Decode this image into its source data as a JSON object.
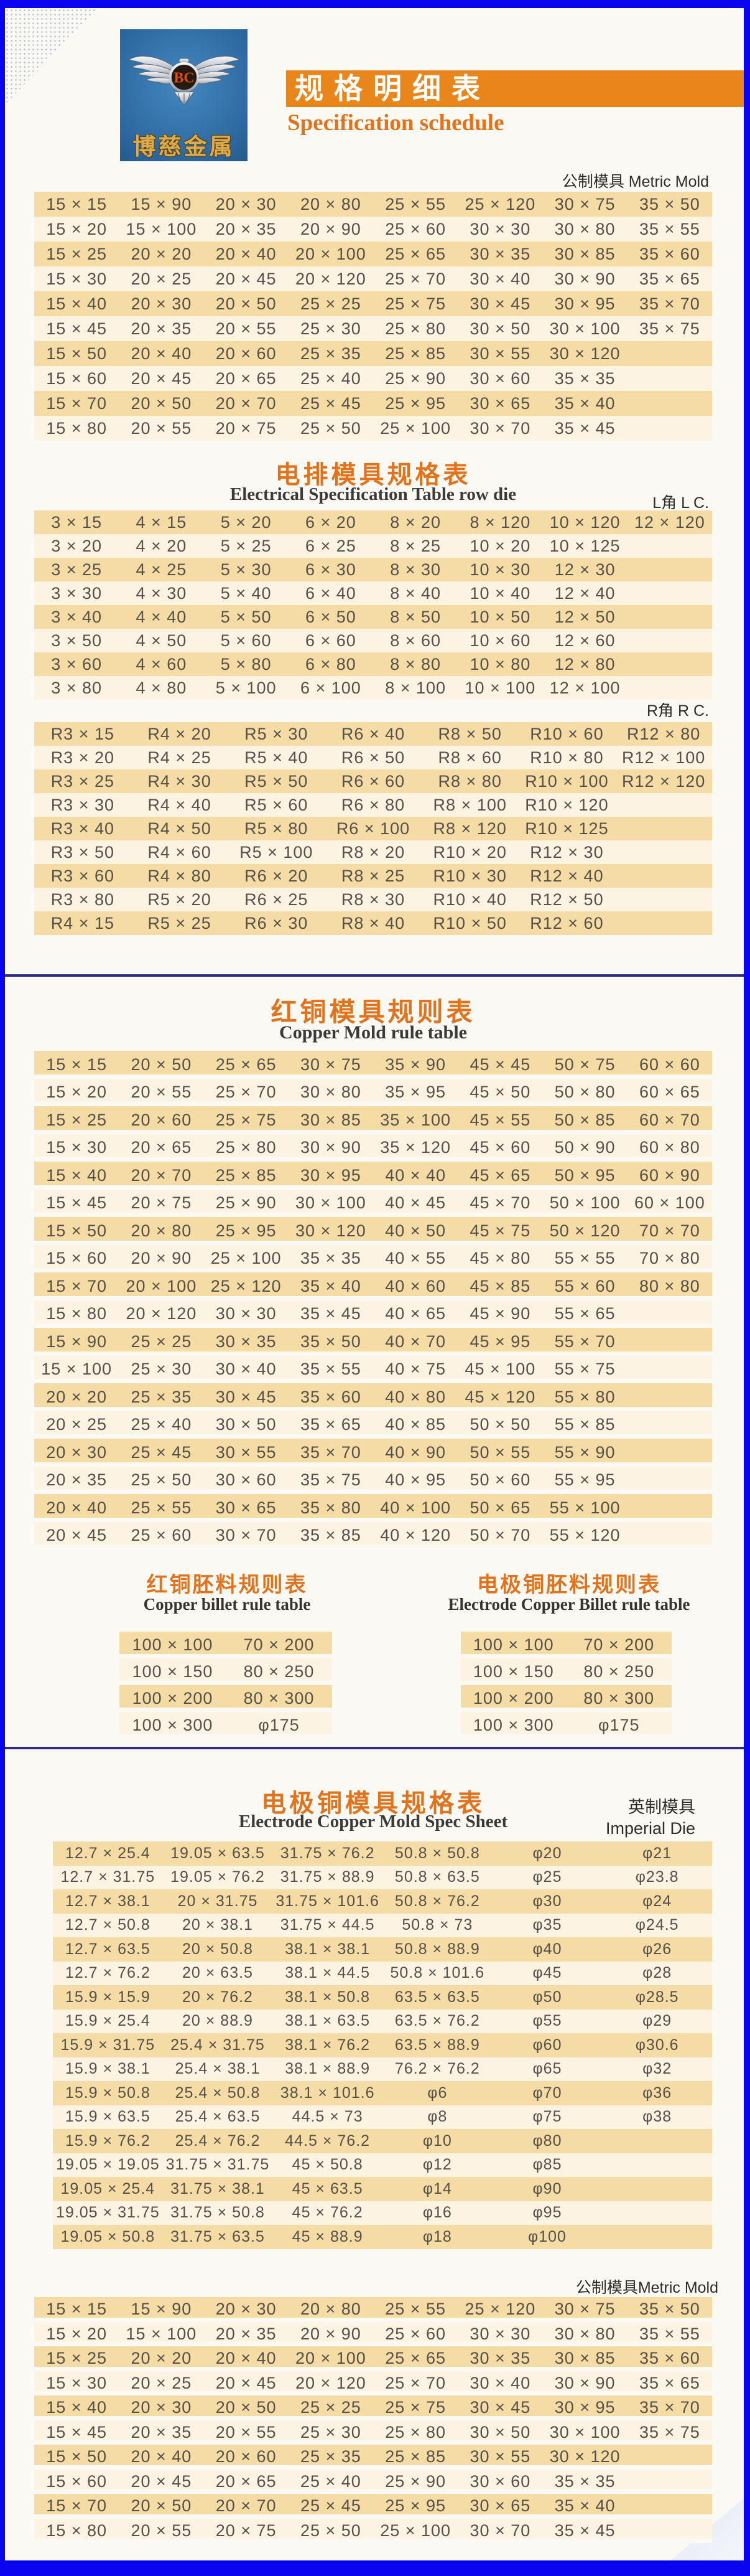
{
  "header": {
    "logo": {
      "emblem_text": "BC",
      "company": "博慈金属"
    },
    "title_cn": "规格明细表",
    "title_en": "Specification schedule"
  },
  "colors": {
    "border_blue": "#0b04ef",
    "divider_navy": "#2c2c86",
    "accent_orange": "#e8861c",
    "title_orange": "#e2731c",
    "row_dark": "#f5dba4",
    "row_light": "#fcf3e2",
    "logo_blue": "#2c689f"
  },
  "sections": {
    "metric_top": {
      "corner_label": "公制模具 Metric Mold",
      "columns": 8,
      "rows": [
        [
          "15 × 15",
          "15 × 90",
          "20 × 30",
          "20 × 80",
          "25 × 55",
          "25 × 120",
          "30 × 75",
          "35 × 50"
        ],
        [
          "15 × 20",
          "15 × 100",
          "20 × 35",
          "20 × 90",
          "25 × 60",
          "30 × 30",
          "30 × 80",
          "35 × 55"
        ],
        [
          "15 × 25",
          "20 × 20",
          "20 × 40",
          "20 × 100",
          "25 × 65",
          "30 × 35",
          "30 × 85",
          "35 × 60"
        ],
        [
          "15 × 30",
          "20 × 25",
          "20 × 45",
          "20 × 120",
          "25 × 70",
          "30 × 40",
          "30 × 90",
          "35 × 65"
        ],
        [
          "15 × 40",
          "20 × 30",
          "20 × 50",
          "25 × 25",
          "25 × 75",
          "30 × 45",
          "30 × 95",
          "35 × 70"
        ],
        [
          "15 × 45",
          "20 × 35",
          "20 × 55",
          "25 × 30",
          "25 × 80",
          "30 × 50",
          "30 × 100",
          "35 × 75"
        ],
        [
          "15 × 50",
          "20 × 40",
          "20 × 60",
          "25 × 35",
          "25 × 85",
          "30 × 55",
          "30 × 120",
          ""
        ],
        [
          "15 × 60",
          "20 × 45",
          "20 × 65",
          "25 × 40",
          "25 × 90",
          "30 × 60",
          "35 × 35",
          ""
        ],
        [
          "15 × 70",
          "20 × 50",
          "20 × 70",
          "25 × 45",
          "25 × 95",
          "30 × 65",
          "35 × 40",
          ""
        ],
        [
          "15 × 80",
          "20 × 55",
          "20 × 75",
          "25 × 50",
          "25 × 100",
          "30 × 70",
          "35 × 45",
          ""
        ]
      ]
    },
    "electrical": {
      "title_cn": "电排模具规格表",
      "title_en": "Electrical Specification Table row die",
      "corner_label": "L角 L C.",
      "columns": 8,
      "rows": [
        [
          "3 × 15",
          "4 × 15",
          "5 × 20",
          "6 × 20",
          "8 × 20",
          "8 × 120",
          "10 × 120",
          "12 × 120"
        ],
        [
          "3 × 20",
          "4 × 20",
          "5 × 25",
          "6 × 25",
          "8 × 25",
          "10 × 20",
          "10 × 125",
          ""
        ],
        [
          "3 × 25",
          "4 × 25",
          "5 × 30",
          "6 × 30",
          "8 × 30",
          "10 × 30",
          "12 × 30",
          ""
        ],
        [
          "3 × 30",
          "4 × 30",
          "5 × 40",
          "6 × 40",
          "8 × 40",
          "10 × 40",
          "12 × 40",
          ""
        ],
        [
          "3 × 40",
          "4 × 40",
          "5 × 50",
          "6 × 50",
          "8 × 50",
          "10 × 50",
          "12 × 50",
          ""
        ],
        [
          "3 × 50",
          "4 × 50",
          "5 × 60",
          "6 × 60",
          "8 × 60",
          "10 × 60",
          "12 × 60",
          ""
        ],
        [
          "3 × 60",
          "4 × 60",
          "5 × 80",
          "6 × 80",
          "8 × 80",
          "10 × 80",
          "12 × 80",
          ""
        ],
        [
          "3 × 80",
          "4 × 80",
          "5 × 100",
          "6 × 100",
          "8 × 100",
          "10 × 100",
          "12 × 100",
          ""
        ]
      ]
    },
    "r_corner": {
      "corner_label": "R角 R C.",
      "columns": 7,
      "rows": [
        [
          "R3 × 15",
          "R4 × 20",
          "R5 × 30",
          "R6 × 40",
          "R8 × 50",
          "R10 × 60",
          "R12 × 80"
        ],
        [
          "R3 × 20",
          "R4 × 25",
          "R5 × 40",
          "R6 × 50",
          "R8 × 60",
          "R10 × 80",
          "R12 × 100"
        ],
        [
          "R3 × 25",
          "R4 × 30",
          "R5 × 50",
          "R6 × 60",
          "R8 × 80",
          "R10 × 100",
          "R12 × 120"
        ],
        [
          "R3 × 30",
          "R4 × 40",
          "R5 × 60",
          "R6 × 80",
          "R8 × 100",
          "R10 × 120",
          ""
        ],
        [
          "R3 × 40",
          "R4 × 50",
          "R5 × 80",
          "R6 × 100",
          "R8 × 120",
          "R10 × 125",
          ""
        ],
        [
          "R3 × 50",
          "R4 × 60",
          "R5 × 100",
          "R8 × 20",
          "R10 × 20",
          "R12 × 30",
          ""
        ],
        [
          "R3 × 60",
          "R4 × 80",
          "R6 × 20",
          "R8 × 25",
          "R10 × 30",
          "R12 × 40",
          ""
        ],
        [
          "R3 × 80",
          "R5 × 20",
          "R6 × 25",
          "R8 × 30",
          "R10 × 40",
          "R12 × 50",
          ""
        ],
        [
          "R4 × 15",
          "R5 × 25",
          "R6 × 30",
          "R8 × 40",
          "R10 × 50",
          "R12 × 60",
          ""
        ]
      ]
    },
    "copper_mold": {
      "title_cn": "红铜模具规则表",
      "title_en": "Copper Mold rule table",
      "columns": 8,
      "rows": [
        [
          "15 × 15",
          "20 × 50",
          "25 × 65",
          "30 × 75",
          "35 × 90",
          "45 × 45",
          "50 × 75",
          "60 × 60"
        ],
        [
          "15 × 20",
          "20 × 55",
          "25 × 70",
          "30 × 80",
          "35 × 95",
          "45 × 50",
          "50 × 80",
          "60 × 65"
        ],
        [
          "15 × 25",
          "20 × 60",
          "25 × 75",
          "30 × 85",
          "35 × 100",
          "45 × 55",
          "50 × 85",
          "60 × 70"
        ],
        [
          "15 × 30",
          "20 × 65",
          "25 × 80",
          "30 × 90",
          "35 × 120",
          "45 × 60",
          "50 × 90",
          "60 × 80"
        ],
        [
          "15 × 40",
          "20 × 70",
          "25 × 85",
          "30 × 95",
          "40 × 40",
          "45 × 65",
          "50 × 95",
          "60 × 90"
        ],
        [
          "15 × 45",
          "20 × 75",
          "25 × 90",
          "30 × 100",
          "40 × 45",
          "45 × 70",
          "50 × 100",
          "60 × 100"
        ],
        [
          "15 × 50",
          "20 × 80",
          "25 × 95",
          "30 × 120",
          "40 × 50",
          "45 × 75",
          "50 × 120",
          "70 × 70"
        ],
        [
          "15 × 60",
          "20 × 90",
          "25 × 100",
          "35 × 35",
          "40 × 55",
          "45 × 80",
          "55 × 55",
          "70 × 80"
        ],
        [
          "15 × 70",
          "20 × 100",
          "25 × 120",
          "35 × 40",
          "40 × 60",
          "45 × 85",
          "55 × 60",
          "80 × 80"
        ],
        [
          "15 × 80",
          "20 × 120",
          "30 × 30",
          "35 × 45",
          "40 × 65",
          "45 × 90",
          "55 × 65",
          ""
        ],
        [
          "15 × 90",
          "25 × 25",
          "30 × 35",
          "35 × 50",
          "40 × 70",
          "45 × 95",
          "55 × 70",
          ""
        ],
        [
          "15 × 100",
          "25 × 30",
          "30 × 40",
          "35 × 55",
          "40 × 75",
          "45 × 100",
          "55 × 75",
          ""
        ],
        [
          "20 × 20",
          "25 × 35",
          "30 × 45",
          "35 × 60",
          "40 × 80",
          "45 × 120",
          "55 × 80",
          ""
        ],
        [
          "20 × 25",
          "25 × 40",
          "30 × 50",
          "35 × 65",
          "40 × 85",
          "50 × 50",
          "55 × 85",
          ""
        ],
        [
          "20 × 30",
          "25 × 45",
          "30 × 55",
          "35 × 70",
          "40 × 90",
          "50 × 55",
          "55 × 90",
          ""
        ],
        [
          "20 × 35",
          "25 × 50",
          "30 × 60",
          "35 × 75",
          "40 × 95",
          "50 × 60",
          "55 × 95",
          ""
        ],
        [
          "20 × 40",
          "25 × 55",
          "30 × 65",
          "35 × 80",
          "40 × 100",
          "50 × 65",
          "55 × 100",
          ""
        ],
        [
          "20 × 45",
          "25 × 60",
          "30 × 70",
          "35 × 85",
          "40 × 120",
          "50 × 70",
          "55 × 120",
          ""
        ]
      ]
    },
    "copper_billet": {
      "title_cn": "红铜胚料规则表",
      "title_en": "Copper billet rule table",
      "columns": 2,
      "rows": [
        [
          "100 × 100",
          "70 × 200"
        ],
        [
          "100 × 150",
          "80 × 250"
        ],
        [
          "100 × 200",
          "80 × 300"
        ],
        [
          "100 × 300",
          "φ175"
        ]
      ]
    },
    "electrode_billet": {
      "title_cn": "电极铜胚料规则表",
      "title_en": "Electrode Copper Billet rule table",
      "columns": 2,
      "rows": [
        [
          "100 × 100",
          "70 × 200"
        ],
        [
          "100 × 150",
          "80 × 250"
        ],
        [
          "100 × 200",
          "80 × 300"
        ],
        [
          "100 × 300",
          "φ175"
        ]
      ]
    },
    "electrode_mold": {
      "title_cn": "电极铜模具规格表",
      "title_en": "Electrode Copper Mold Spec Sheet",
      "corner_label_cn": "英制模具",
      "corner_label_en": "Imperial Die",
      "columns": 6,
      "rows": [
        [
          "12.7 × 25.4",
          "19.05 × 63.5",
          "31.75 × 76.2",
          "50.8 × 50.8",
          "φ20",
          "φ21"
        ],
        [
          "12.7 × 31.75",
          "19.05 × 76.2",
          "31.75 × 88.9",
          "50.8 × 63.5",
          "φ25",
          "φ23.8"
        ],
        [
          "12.7 × 38.1",
          "20 × 31.75",
          "31.75 × 101.6",
          "50.8 × 76.2",
          "φ30",
          "φ24"
        ],
        [
          "12.7 × 50.8",
          "20 × 38.1",
          "31.75 × 44.5",
          "50.8 × 73",
          "φ35",
          "φ24.5"
        ],
        [
          "12.7 × 63.5",
          "20 × 50.8",
          "38.1 × 38.1",
          "50.8 × 88.9",
          "φ40",
          "φ26"
        ],
        [
          "12.7 × 76.2",
          "20 × 63.5",
          "38.1 × 44.5",
          "50.8 × 101.6",
          "φ45",
          "φ28"
        ],
        [
          "15.9 × 15.9",
          "20 × 76.2",
          "38.1 × 50.8",
          "63.5 × 63.5",
          "φ50",
          "φ28.5"
        ],
        [
          "15.9 × 25.4",
          "20 × 88.9",
          "38.1 × 63.5",
          "63.5 × 76.2",
          "φ55",
          "φ29"
        ],
        [
          "15.9 × 31.75",
          "25.4 × 31.75",
          "38.1 × 76.2",
          "63.5 × 88.9",
          "φ60",
          "φ30.6"
        ],
        [
          "15.9 × 38.1",
          "25.4 × 38.1",
          "38.1 × 88.9",
          "76.2 × 76.2",
          "φ65",
          "φ32"
        ],
        [
          "15.9 × 50.8",
          "25.4 × 50.8",
          "38.1 × 101.6",
          "φ6",
          "φ70",
          "φ36"
        ],
        [
          "15.9 × 63.5",
          "25.4 × 63.5",
          "44.5 × 73",
          "φ8",
          "φ75",
          "φ38"
        ],
        [
          "15.9 × 76.2",
          "25.4 × 76.2",
          "44.5 × 76.2",
          "φ10",
          "φ80",
          ""
        ],
        [
          "19.05 × 19.05",
          "31.75 × 31.75",
          "45 × 50.8",
          "φ12",
          "φ85",
          ""
        ],
        [
          "19.05 × 25.4",
          "31.75 × 38.1",
          "45 × 63.5",
          "φ14",
          "φ90",
          ""
        ],
        [
          "19.05 × 31.75",
          "31.75 × 50.8",
          "45 × 76.2",
          "φ16",
          "φ95",
          ""
        ],
        [
          "19.05 × 50.8",
          "31.75 × 63.5",
          "45 × 88.9",
          "φ18",
          "φ100",
          ""
        ]
      ]
    },
    "metric_bottom": {
      "corner_label": "公制模具Metric Mold",
      "columns": 8,
      "rows": [
        [
          "15 × 15",
          "15 × 90",
          "20 × 30",
          "20 × 80",
          "25 × 55",
          "25 × 120",
          "30 × 75",
          "35 × 50"
        ],
        [
          "15 × 20",
          "15 × 100",
          "20 × 35",
          "20 × 90",
          "25 × 60",
          "30 × 30",
          "30 × 80",
          "35 × 55"
        ],
        [
          "15 × 25",
          "20 × 20",
          "20 × 40",
          "20 × 100",
          "25 × 65",
          "30 × 35",
          "30 × 85",
          "35 × 60"
        ],
        [
          "15 × 30",
          "20 × 25",
          "20 × 45",
          "20 × 120",
          "25 × 70",
          "30 × 40",
          "30 × 90",
          "35 × 65"
        ],
        [
          "15 × 40",
          "20 × 30",
          "20 × 50",
          "25 × 25",
          "25 × 75",
          "30 × 45",
          "30 × 95",
          "35 × 70"
        ],
        [
          "15 × 45",
          "20 × 35",
          "20 × 55",
          "25 × 30",
          "25 × 80",
          "30 × 50",
          "30 × 100",
          "35 × 75"
        ],
        [
          "15 × 50",
          "20 × 40",
          "20 × 60",
          "25 × 35",
          "25 × 85",
          "30 × 55",
          "30 × 120",
          ""
        ],
        [
          "15 × 60",
          "20 × 45",
          "20 × 65",
          "25 × 40",
          "25 × 90",
          "30 × 60",
          "35 × 35",
          ""
        ],
        [
          "15 × 70",
          "20 × 50",
          "20 × 70",
          "25 × 45",
          "25 × 95",
          "30 × 65",
          "35 × 40",
          ""
        ],
        [
          "15 × 80",
          "20 × 55",
          "20 × 75",
          "25 × 50",
          "25 × 100",
          "30 × 70",
          "35 × 45",
          ""
        ]
      ]
    }
  }
}
